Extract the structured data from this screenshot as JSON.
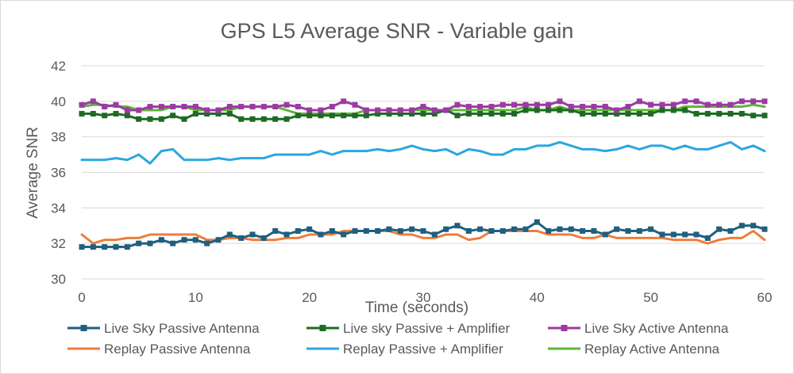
{
  "chart_data": {
    "type": "line",
    "title": "GPS L5 Average SNR - Variable gain",
    "xlabel": "Time (seconds)",
    "ylabel": "Average SNR",
    "xlim": [
      0,
      60
    ],
    "ylim": [
      30,
      42
    ],
    "xticks": [
      "0",
      "10",
      "20",
      "30",
      "40",
      "50",
      "60"
    ],
    "yticks": [
      "30",
      "32",
      "34",
      "36",
      "38",
      "40",
      "42"
    ],
    "grid": "horizontal",
    "legend_position": "bottom",
    "x": [
      0,
      1,
      2,
      3,
      4,
      5,
      6,
      7,
      8,
      9,
      10,
      11,
      12,
      13,
      14,
      15,
      16,
      17,
      18,
      19,
      20,
      21,
      22,
      23,
      24,
      25,
      26,
      27,
      28,
      29,
      30,
      31,
      32,
      33,
      34,
      35,
      36,
      37,
      38,
      39,
      40,
      41,
      42,
      43,
      44,
      45,
      46,
      47,
      48,
      49,
      50,
      51,
      52,
      53,
      54,
      55,
      56,
      57,
      58,
      59,
      60
    ],
    "series": [
      {
        "name": "Live Sky Passive Antenna",
        "color": "#1f5f7f",
        "marker": "square",
        "values": [
          31.8,
          31.8,
          31.8,
          31.8,
          31.8,
          32.0,
          32.0,
          32.2,
          32.0,
          32.2,
          32.2,
          32.0,
          32.2,
          32.5,
          32.3,
          32.5,
          32.3,
          32.7,
          32.5,
          32.7,
          32.8,
          32.5,
          32.7,
          32.5,
          32.7,
          32.7,
          32.7,
          32.8,
          32.7,
          32.8,
          32.7,
          32.5,
          32.8,
          33.0,
          32.7,
          32.8,
          32.7,
          32.7,
          32.8,
          32.8,
          33.2,
          32.7,
          32.8,
          32.8,
          32.7,
          32.7,
          32.5,
          32.8,
          32.7,
          32.7,
          32.8,
          32.5,
          32.5,
          32.5,
          32.5,
          32.3,
          32.8,
          32.7,
          33.0,
          33.0,
          32.8
        ]
      },
      {
        "name": "Live sky Passive + Amplifier",
        "color": "#1e6b24",
        "marker": "square",
        "values": [
          39.3,
          39.3,
          39.2,
          39.3,
          39.2,
          39.0,
          39.0,
          39.0,
          39.2,
          39.0,
          39.3,
          39.3,
          39.3,
          39.3,
          39.0,
          39.0,
          39.0,
          39.0,
          39.0,
          39.2,
          39.2,
          39.2,
          39.2,
          39.2,
          39.2,
          39.2,
          39.3,
          39.3,
          39.3,
          39.3,
          39.3,
          39.3,
          39.5,
          39.2,
          39.3,
          39.3,
          39.3,
          39.3,
          39.3,
          39.5,
          39.5,
          39.5,
          39.5,
          39.5,
          39.3,
          39.3,
          39.3,
          39.3,
          39.3,
          39.3,
          39.3,
          39.5,
          39.5,
          39.5,
          39.3,
          39.3,
          39.3,
          39.3,
          39.3,
          39.2,
          39.2
        ]
      },
      {
        "name": "Live Sky Active Antenna",
        "color": "#9c3aa3",
        "marker": "square",
        "values": [
          39.8,
          40.0,
          39.7,
          39.8,
          39.5,
          39.5,
          39.7,
          39.7,
          39.7,
          39.7,
          39.7,
          39.5,
          39.5,
          39.7,
          39.7,
          39.7,
          39.7,
          39.7,
          39.8,
          39.7,
          39.5,
          39.5,
          39.7,
          40.0,
          39.8,
          39.5,
          39.5,
          39.5,
          39.5,
          39.5,
          39.7,
          39.5,
          39.5,
          39.8,
          39.7,
          39.7,
          39.7,
          39.8,
          39.8,
          39.8,
          39.8,
          39.8,
          40.0,
          39.7,
          39.7,
          39.7,
          39.7,
          39.5,
          39.7,
          40.0,
          39.8,
          39.8,
          39.8,
          40.0,
          40.0,
          39.8,
          39.8,
          39.8,
          40.0,
          40.0,
          40.0
        ]
      },
      {
        "name": "Replay Passive Antenna",
        "color": "#ef7c3a",
        "marker": "none",
        "values": [
          32.5,
          32.0,
          32.2,
          32.2,
          32.3,
          32.3,
          32.5,
          32.5,
          32.5,
          32.5,
          32.5,
          32.2,
          32.2,
          32.3,
          32.3,
          32.2,
          32.2,
          32.2,
          32.3,
          32.3,
          32.5,
          32.5,
          32.5,
          32.7,
          32.7,
          32.7,
          32.7,
          32.7,
          32.5,
          32.5,
          32.3,
          32.3,
          32.5,
          32.5,
          32.2,
          32.3,
          32.7,
          32.7,
          32.7,
          32.7,
          32.7,
          32.5,
          32.5,
          32.5,
          32.3,
          32.3,
          32.5,
          32.3,
          32.3,
          32.3,
          32.3,
          32.3,
          32.2,
          32.2,
          32.2,
          32.0,
          32.2,
          32.3,
          32.3,
          32.7,
          32.2
        ]
      },
      {
        "name": "Replay Passive + Amplifier",
        "color": "#2aa7e0",
        "marker": "none",
        "values": [
          36.7,
          36.7,
          36.7,
          36.8,
          36.7,
          37.0,
          36.5,
          37.2,
          37.3,
          36.7,
          36.7,
          36.7,
          36.8,
          36.7,
          36.8,
          36.8,
          36.8,
          37.0,
          37.0,
          37.0,
          37.0,
          37.2,
          37.0,
          37.2,
          37.2,
          37.2,
          37.3,
          37.2,
          37.3,
          37.5,
          37.3,
          37.2,
          37.3,
          37.0,
          37.3,
          37.2,
          37.0,
          37.0,
          37.3,
          37.3,
          37.5,
          37.5,
          37.7,
          37.5,
          37.3,
          37.3,
          37.2,
          37.3,
          37.5,
          37.3,
          37.5,
          37.5,
          37.3,
          37.5,
          37.3,
          37.3,
          37.5,
          37.7,
          37.3,
          37.5,
          37.2
        ]
      },
      {
        "name": "Replay Active Antenna",
        "color": "#5cb535",
        "marker": "none",
        "values": [
          39.7,
          39.8,
          39.8,
          39.7,
          39.7,
          39.5,
          39.5,
          39.5,
          39.7,
          39.7,
          39.5,
          39.5,
          39.5,
          39.5,
          39.7,
          39.7,
          39.7,
          39.7,
          39.5,
          39.3,
          39.3,
          39.3,
          39.3,
          39.3,
          39.3,
          39.5,
          39.5,
          39.5,
          39.5,
          39.5,
          39.5,
          39.5,
          39.5,
          39.5,
          39.5,
          39.5,
          39.5,
          39.5,
          39.5,
          39.7,
          39.5,
          39.5,
          39.7,
          39.5,
          39.5,
          39.5,
          39.5,
          39.5,
          39.5,
          39.5,
          39.5,
          39.5,
          39.5,
          39.7,
          39.7,
          39.7,
          39.7,
          39.7,
          39.7,
          39.8,
          39.7
        ]
      }
    ]
  }
}
